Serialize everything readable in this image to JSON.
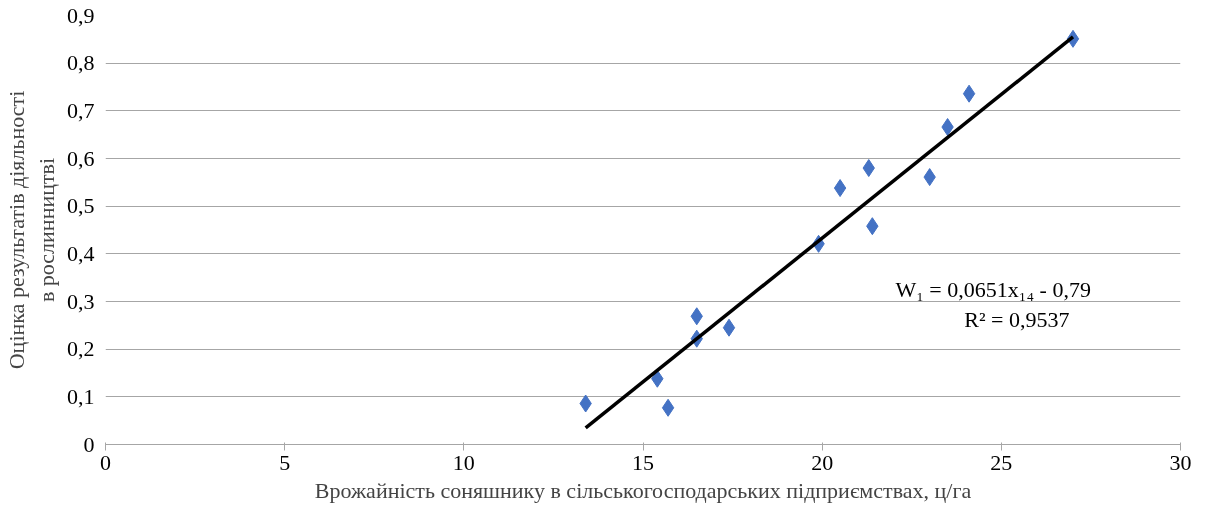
{
  "chart_data": {
    "type": "scatter",
    "xlabel": "Врожайність соняшнику в сільськогосподарських підприємствах, ц/га",
    "ylabel": "Оцінка результатів діяльності\nв рослинництві",
    "x": [
      13.4,
      15.4,
      15.7,
      16.5,
      16.5,
      17.4,
      19.9,
      20.5,
      21.3,
      21.4,
      23.0,
      23.5,
      24.1,
      27.0
    ],
    "series": [
      {
        "color": "#4472c4",
        "marker": "diamond",
        "values": [
          0.086,
          0.138,
          0.077,
          0.269,
          0.222,
          0.245,
          0.421,
          0.538,
          0.58,
          0.458,
          0.561,
          0.666,
          0.736,
          0.851
        ]
      },
      {
        "type": "line",
        "color": "#000000",
        "x": [
          13.4,
          27.0
        ],
        "values": [
          0.035,
          0.855
        ]
      }
    ],
    "xlim": [
      0,
      30
    ],
    "xticks": [
      0,
      5,
      10,
      15,
      20,
      25,
      30
    ],
    "ylim": [
      0,
      0.9
    ],
    "yticks": [
      0,
      {
        "value": 0.1,
        "label": "0,1"
      },
      {
        "value": 0.2,
        "label": "0,2"
      },
      {
        "value": 0.3,
        "label": "0,3"
      },
      {
        "value": 0.4,
        "label": "0,4"
      },
      {
        "value": 0.5,
        "label": "0,5"
      },
      {
        "value": 0.6,
        "label": "0,6"
      },
      {
        "value": 0.7,
        "label": "0,7"
      },
      {
        "value": 0.8,
        "label": "0,8"
      },
      {
        "value": 0.9,
        "label": "0,9"
      }
    ],
    "grid": "y",
    "annotations": [
      "W₁ = 0,0651x₁₄ - 0,79",
      "R² = 0,9537"
    ]
  }
}
